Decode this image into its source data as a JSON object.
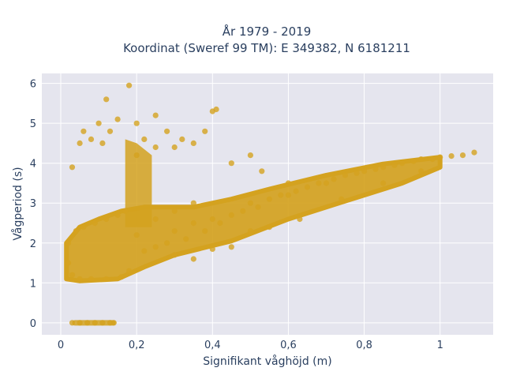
{
  "chart_data": {
    "type": "scatter",
    "title_line1": "År 1979 - 2019",
    "title_line2": "Koordinat (Sweref 99 TM): E 349382, N 6181211",
    "xlabel": "Signifikant våghöjd (m)",
    "ylabel": "Vågperiod (s)",
    "xlim": [
      -0.05,
      1.14
    ],
    "ylim": [
      -0.3,
      6.25
    ],
    "x_ticks": [
      0,
      0.2,
      0.4,
      0.6,
      0.8,
      1
    ],
    "x_tick_labels": [
      "0",
      "0,2",
      "0,4",
      "0,6",
      "0,8",
      "1"
    ],
    "y_ticks": [
      0,
      1,
      2,
      3,
      4,
      5,
      6
    ],
    "y_tick_labels": [
      "0",
      "1",
      "2",
      "3",
      "4",
      "5",
      "6"
    ],
    "grid": true,
    "marker_color": "#D4A21F",
    "plot_background": "#E5E5EE",
    "series": [
      {
        "points": [
          [
            0.03,
            0
          ],
          [
            0.05,
            0
          ],
          [
            0.07,
            0
          ],
          [
            0.09,
            0
          ],
          [
            0.11,
            0
          ],
          [
            0.13,
            0
          ],
          [
            0.14,
            0
          ],
          [
            0.02,
            1.5
          ],
          [
            0.03,
            1.2
          ],
          [
            0.05,
            1.1
          ],
          [
            0.08,
            1.1
          ],
          [
            0.12,
            1.1
          ],
          [
            0.16,
            1.15
          ],
          [
            0.18,
            1.3
          ],
          [
            0.02,
            2.0
          ],
          [
            0.04,
            2.3
          ],
          [
            0.06,
            2.4
          ],
          [
            0.09,
            2.5
          ],
          [
            0.12,
            2.6
          ],
          [
            0.15,
            2.7
          ],
          [
            0.17,
            2.8
          ],
          [
            0.2,
            2.2
          ],
          [
            0.22,
            1.8
          ],
          [
            0.25,
            1.9
          ],
          [
            0.25,
            2.6
          ],
          [
            0.28,
            2.0
          ],
          [
            0.3,
            2.3
          ],
          [
            0.3,
            2.8
          ],
          [
            0.33,
            2.1
          ],
          [
            0.35,
            2.5
          ],
          [
            0.35,
            3.0
          ],
          [
            0.38,
            2.3
          ],
          [
            0.4,
            2.6
          ],
          [
            0.42,
            2.5
          ],
          [
            0.45,
            2.7
          ],
          [
            0.48,
            2.8
          ],
          [
            0.5,
            3.0
          ],
          [
            0.52,
            2.9
          ],
          [
            0.55,
            3.1
          ],
          [
            0.58,
            3.2
          ],
          [
            0.6,
            3.2
          ],
          [
            0.62,
            3.3
          ],
          [
            0.65,
            3.4
          ],
          [
            0.68,
            3.5
          ],
          [
            0.7,
            3.5
          ],
          [
            0.72,
            3.6
          ],
          [
            0.75,
            3.7
          ],
          [
            0.78,
            3.75
          ],
          [
            0.8,
            3.8
          ],
          [
            0.83,
            3.85
          ],
          [
            0.85,
            3.9
          ],
          [
            0.88,
            3.95
          ],
          [
            0.9,
            4.0
          ],
          [
            0.93,
            4.05
          ],
          [
            0.95,
            4.1
          ],
          [
            0.98,
            4.1
          ],
          [
            1.0,
            4.15
          ],
          [
            1.03,
            4.18
          ],
          [
            1.06,
            4.2
          ],
          [
            1.09,
            4.27
          ],
          [
            0.03,
            3.9
          ],
          [
            0.05,
            4.5
          ],
          [
            0.06,
            4.8
          ],
          [
            0.08,
            4.6
          ],
          [
            0.1,
            5.0
          ],
          [
            0.11,
            4.5
          ],
          [
            0.12,
            5.6
          ],
          [
            0.13,
            4.8
          ],
          [
            0.15,
            5.1
          ],
          [
            0.18,
            5.95
          ],
          [
            0.2,
            5.0
          ],
          [
            0.2,
            4.2
          ],
          [
            0.22,
            4.6
          ],
          [
            0.25,
            4.4
          ],
          [
            0.25,
            5.2
          ],
          [
            0.28,
            4.8
          ],
          [
            0.3,
            4.4
          ],
          [
            0.32,
            4.6
          ],
          [
            0.35,
            4.5
          ],
          [
            0.38,
            4.8
          ],
          [
            0.4,
            5.3
          ],
          [
            0.41,
            5.35
          ],
          [
            0.45,
            4.0
          ],
          [
            0.5,
            4.2
          ],
          [
            0.53,
            3.8
          ],
          [
            0.6,
            3.5
          ],
          [
            0.3,
            1.7
          ],
          [
            0.35,
            1.6
          ],
          [
            0.4,
            1.85
          ],
          [
            0.45,
            1.9
          ],
          [
            0.5,
            2.3
          ],
          [
            0.55,
            2.4
          ],
          [
            0.63,
            2.6
          ],
          [
            0.74,
            3.1
          ],
          [
            0.85,
            3.5
          ],
          [
            0.95,
            3.8
          ]
        ]
      }
    ]
  }
}
